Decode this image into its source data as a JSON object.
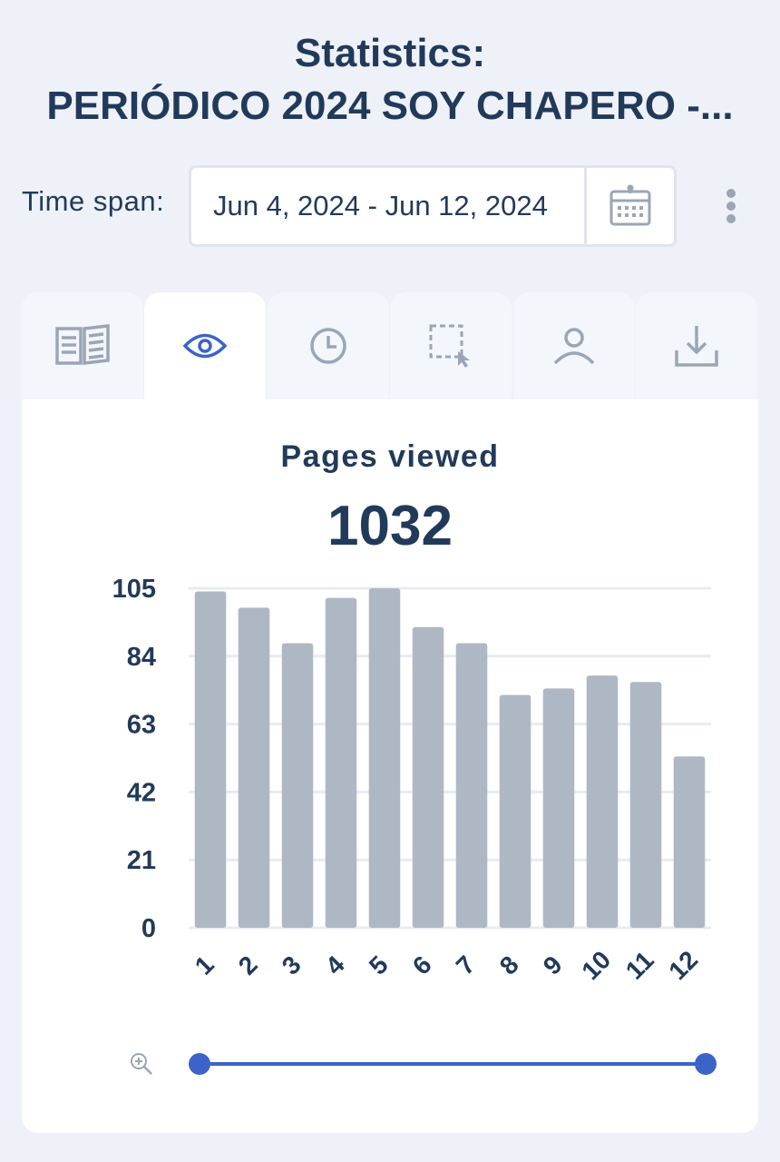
{
  "header": {
    "title_line1": "Statistics:",
    "title_line2": "PERIÓDICO 2024 SOY CHAPERO -..."
  },
  "timespan": {
    "label": "Time span:",
    "value": "Jun 4, 2024 - Jun 12, 2024"
  },
  "tabs": [
    {
      "icon": "document-icon",
      "active": false
    },
    {
      "icon": "eye-icon",
      "active": true
    },
    {
      "icon": "clock-icon",
      "active": false
    },
    {
      "icon": "selection-icon",
      "active": false
    },
    {
      "icon": "user-icon",
      "active": false
    },
    {
      "icon": "download-icon",
      "active": false
    }
  ],
  "colors": {
    "accent": "#3b63c8",
    "bar": "#aeb8c5",
    "text": "#223a5a",
    "grid": "#e7ecf3"
  },
  "chart_data": {
    "type": "bar",
    "title": "Pages viewed",
    "total": "1032",
    "categories": [
      "1",
      "2",
      "3",
      "4",
      "5",
      "6",
      "7",
      "8",
      "9",
      "10",
      "11",
      "12"
    ],
    "values": [
      104,
      99,
      88,
      102,
      105,
      93,
      88,
      72,
      74,
      78,
      76,
      53
    ],
    "yticks": [
      "0",
      "21",
      "42",
      "63",
      "84",
      "105"
    ],
    "ylim": [
      0,
      105
    ],
    "grid": true
  }
}
